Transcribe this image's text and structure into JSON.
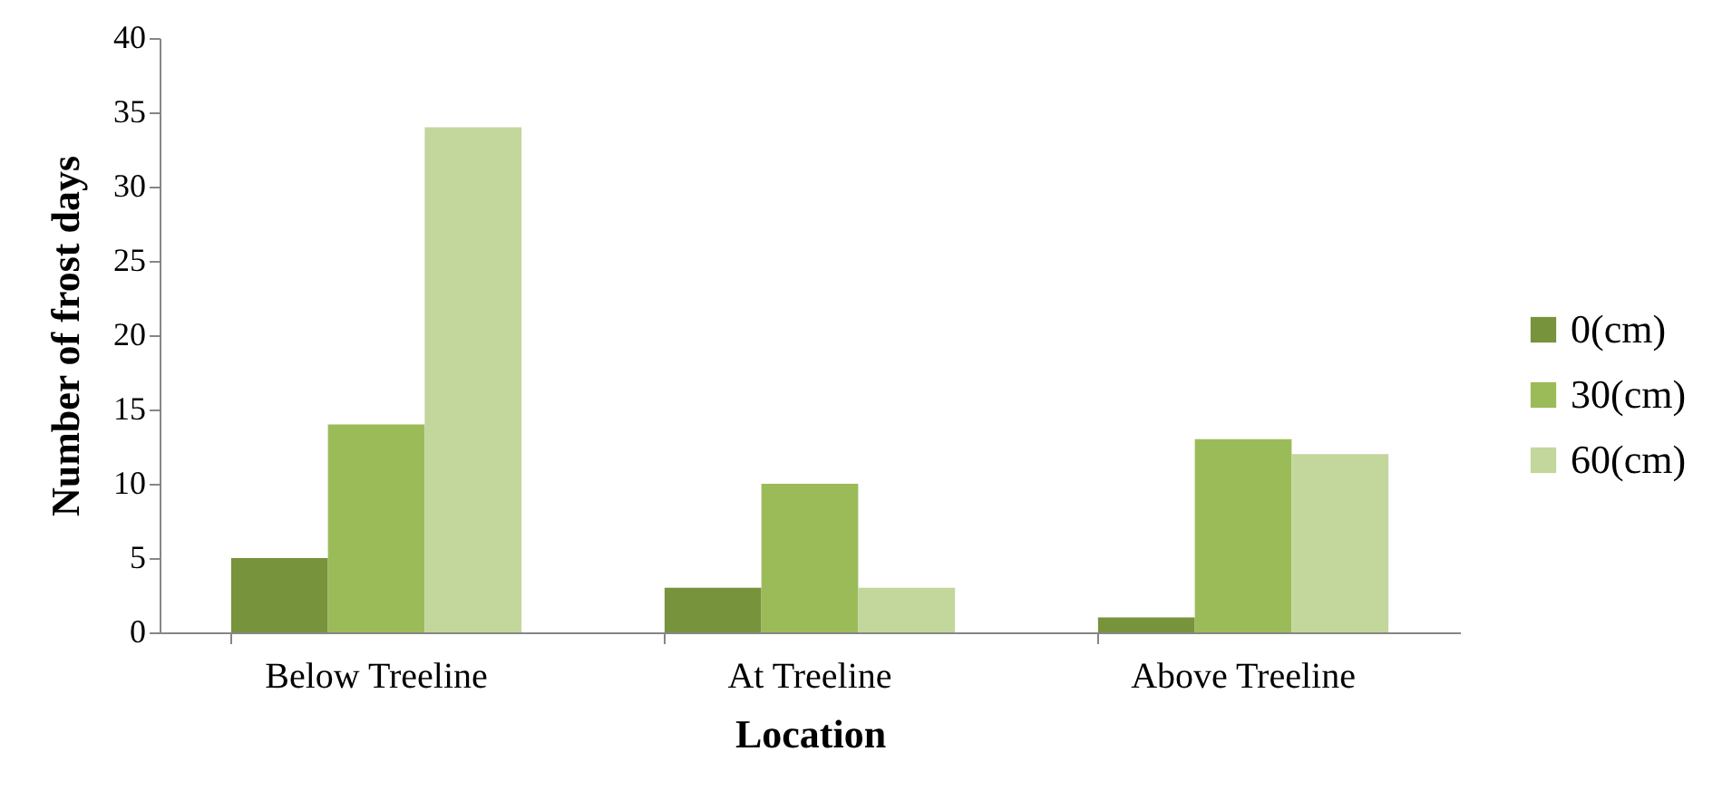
{
  "chart_data": {
    "type": "bar",
    "xlabel": "Location",
    "ylabel": "Number of frost days",
    "categories": [
      "Below Treeline",
      "At Treeline",
      "Above Treeline"
    ],
    "series": [
      {
        "name": "0(cm)",
        "color": "#77933c",
        "values": [
          5,
          3,
          1
        ]
      },
      {
        "name": "30(cm)",
        "color": "#9bbb59",
        "values": [
          14,
          10,
          13
        ]
      },
      {
        "name": "60(cm)",
        "color": "#c3d69b",
        "values": [
          34,
          3,
          12
        ]
      }
    ],
    "ylim": [
      0,
      40
    ],
    "yticks": [
      0,
      5,
      10,
      15,
      20,
      25,
      30,
      35,
      40
    ],
    "grid": false,
    "legend": "right"
  }
}
